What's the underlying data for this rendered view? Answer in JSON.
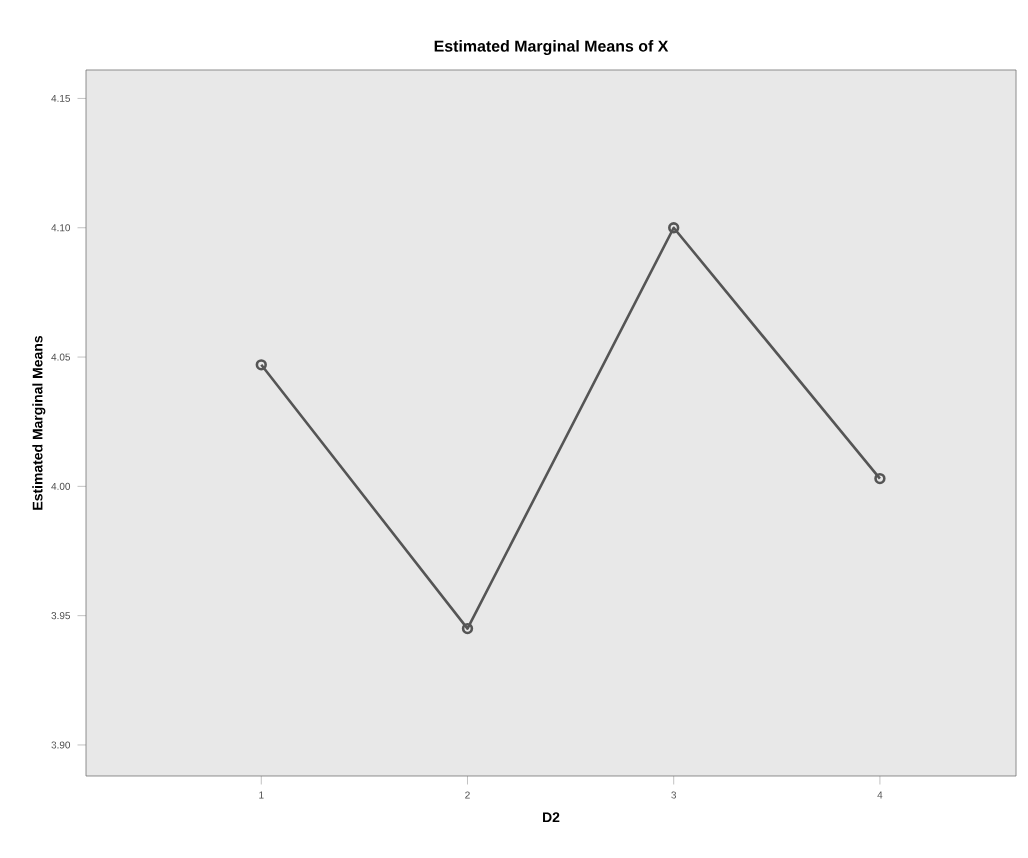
{
  "chart_data": {
    "type": "line",
    "title": "Estimated Marginal Means of X",
    "xlabel": "D2",
    "ylabel": "Estimated Marginal Means",
    "categories": [
      "1",
      "2",
      "3",
      "4"
    ],
    "values": [
      4.047,
      3.945,
      4.1,
      4.003
    ],
    "color": "#555555",
    "marker": "circle",
    "line_style": "solid",
    "grid": false,
    "ylim": [
      3.888,
      4.161
    ],
    "yticks": [
      {
        "value": 3.9,
        "label": "3.90"
      },
      {
        "value": 3.95,
        "label": "3.95"
      },
      {
        "value": 4.0,
        "label": "4.00"
      },
      {
        "value": 4.05,
        "label": "4.05"
      },
      {
        "value": 4.1,
        "label": "4.10"
      },
      {
        "value": 4.15,
        "label": "4.15"
      }
    ]
  }
}
